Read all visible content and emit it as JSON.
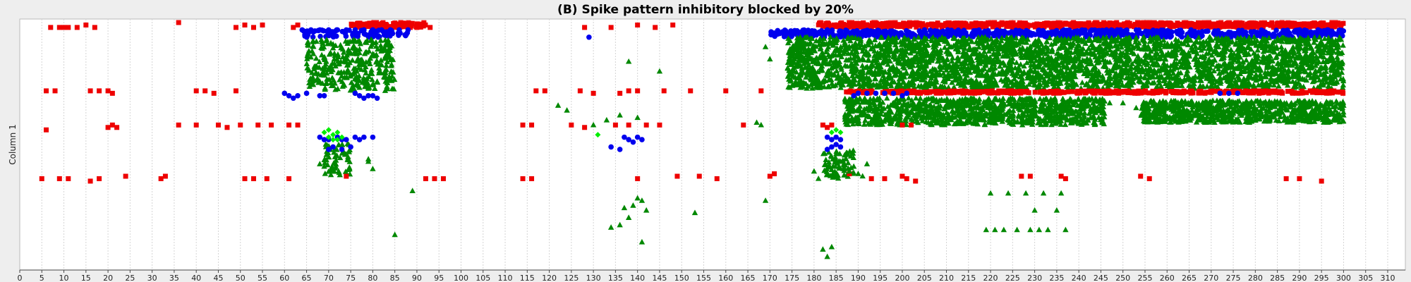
{
  "chart_data": {
    "type": "scatter",
    "title": "(B) Spike pattern inhibitory blocked by 20%",
    "ylabel": "Column 1",
    "xlabel": "",
    "xlim": [
      0,
      314
    ],
    "x_ticks": [
      0,
      5,
      10,
      15,
      20,
      25,
      30,
      35,
      40,
      45,
      50,
      55,
      60,
      65,
      70,
      75,
      80,
      85,
      90,
      95,
      100,
      105,
      110,
      115,
      120,
      125,
      130,
      135,
      140,
      145,
      150,
      155,
      160,
      165,
      170,
      175,
      180,
      185,
      190,
      195,
      200,
      205,
      210,
      215,
      220,
      225,
      230,
      235,
      240,
      245,
      250,
      255,
      260,
      265,
      270,
      275,
      280,
      285,
      290,
      295,
      300,
      305,
      310
    ],
    "grid": "vertical dashed",
    "y_unit": "row index from top (0 = top edge, 100 = bottom edge)",
    "series": [
      {
        "marker": "square",
        "color": "#ee0000",
        "points": [
          [
            7,
            2
          ],
          [
            9,
            2
          ],
          [
            10,
            2
          ],
          [
            11,
            2
          ],
          [
            13,
            2
          ],
          [
            15,
            1
          ],
          [
            17,
            2
          ],
          [
            36,
            0
          ],
          [
            49,
            2
          ],
          [
            51,
            1
          ],
          [
            53,
            2
          ],
          [
            55,
            1
          ],
          [
            62,
            2
          ],
          [
            63,
            1
          ],
          [
            90,
            2
          ],
          [
            93,
            2
          ],
          [
            128,
            2
          ],
          [
            134,
            2
          ],
          [
            140,
            1
          ],
          [
            144,
            2
          ],
          [
            148,
            1
          ],
          [
            6,
            28
          ],
          [
            8,
            28
          ],
          [
            16,
            28
          ],
          [
            18,
            28
          ],
          [
            20,
            28
          ],
          [
            21,
            29
          ],
          [
            40,
            28
          ],
          [
            42,
            28
          ],
          [
            44,
            29
          ],
          [
            49,
            28
          ],
          [
            117,
            28
          ],
          [
            119,
            28
          ],
          [
            127,
            28
          ],
          [
            130,
            29
          ],
          [
            136,
            29
          ],
          [
            138,
            28
          ],
          [
            140,
            28
          ],
          [
            146,
            28
          ],
          [
            152,
            28
          ],
          [
            160,
            28
          ],
          [
            168,
            28
          ],
          [
            36,
            42
          ],
          [
            40,
            42
          ],
          [
            45,
            42
          ],
          [
            47,
            43
          ],
          [
            50,
            42
          ],
          [
            54,
            42
          ],
          [
            57,
            42
          ],
          [
            61,
            42
          ],
          [
            63,
            42
          ],
          [
            6,
            44
          ],
          [
            20,
            43
          ],
          [
            21,
            42
          ],
          [
            22,
            43
          ],
          [
            114,
            42
          ],
          [
            116,
            42
          ],
          [
            125,
            42
          ],
          [
            128,
            43
          ],
          [
            135,
            42
          ],
          [
            138,
            42
          ],
          [
            142,
            42
          ],
          [
            145,
            42
          ],
          [
            164,
            42
          ],
          [
            182,
            42
          ],
          [
            183,
            43
          ],
          [
            184,
            42
          ],
          [
            200,
            42
          ],
          [
            202,
            42
          ],
          [
            5,
            64
          ],
          [
            9,
            64
          ],
          [
            11,
            64
          ],
          [
            16,
            65
          ],
          [
            18,
            64
          ],
          [
            24,
            63
          ],
          [
            32,
            64
          ],
          [
            33,
            63
          ],
          [
            51,
            64
          ],
          [
            53,
            64
          ],
          [
            56,
            64
          ],
          [
            61,
            64
          ],
          [
            74,
            63
          ],
          [
            92,
            64
          ],
          [
            94,
            64
          ],
          [
            96,
            64
          ],
          [
            114,
            64
          ],
          [
            116,
            64
          ],
          [
            140,
            64
          ],
          [
            149,
            63
          ],
          [
            154,
            63
          ],
          [
            158,
            64
          ],
          [
            170,
            63
          ],
          [
            171,
            62
          ],
          [
            188,
            62
          ],
          [
            193,
            64
          ],
          [
            196,
            64
          ],
          [
            200,
            63
          ],
          [
            201,
            64
          ],
          [
            203,
            65
          ],
          [
            227,
            63
          ],
          [
            229,
            63
          ],
          [
            236,
            63
          ],
          [
            237,
            64
          ],
          [
            254,
            63
          ],
          [
            256,
            64
          ],
          [
            287,
            64
          ],
          [
            290,
            64
          ],
          [
            295,
            65
          ]
        ]
      },
      {
        "marker": "circle",
        "color": "#0000ee",
        "points": [
          [
            129,
            6
          ],
          [
            64,
            3
          ],
          [
            66,
            3
          ],
          [
            68,
            3
          ],
          [
            70,
            3
          ],
          [
            72,
            3
          ],
          [
            74,
            3
          ],
          [
            76,
            3
          ],
          [
            78,
            3
          ],
          [
            80,
            3
          ],
          [
            82,
            3
          ],
          [
            84,
            3
          ],
          [
            86,
            3
          ],
          [
            88,
            3
          ],
          [
            60,
            29
          ],
          [
            61,
            30
          ],
          [
            62,
            31
          ],
          [
            63,
            30
          ],
          [
            65,
            29
          ],
          [
            68,
            30
          ],
          [
            69,
            30
          ],
          [
            76,
            29
          ],
          [
            77,
            30
          ],
          [
            78,
            31
          ],
          [
            79,
            30
          ],
          [
            80,
            30
          ],
          [
            81,
            31
          ],
          [
            68,
            47
          ],
          [
            69,
            48
          ],
          [
            70,
            48
          ],
          [
            72,
            47
          ],
          [
            73,
            48
          ],
          [
            74,
            48
          ],
          [
            76,
            47
          ],
          [
            77,
            48
          ],
          [
            78,
            47
          ],
          [
            80,
            47
          ],
          [
            70,
            52
          ],
          [
            71,
            51
          ],
          [
            73,
            52
          ],
          [
            75,
            51
          ],
          [
            134,
            51
          ],
          [
            136,
            52
          ],
          [
            138,
            48
          ],
          [
            139,
            49
          ],
          [
            140,
            47
          ],
          [
            141,
            48
          ],
          [
            137,
            47
          ],
          [
            183,
            47
          ],
          [
            184,
            48
          ],
          [
            185,
            47
          ],
          [
            186,
            48
          ],
          [
            183,
            52
          ],
          [
            184,
            51
          ],
          [
            185,
            50
          ],
          [
            186,
            51
          ],
          [
            189,
            30
          ],
          [
            190,
            29
          ],
          [
            192,
            29
          ],
          [
            194,
            29
          ],
          [
            196,
            29
          ],
          [
            198,
            29
          ],
          [
            200,
            30
          ],
          [
            201,
            29
          ],
          [
            272,
            29
          ],
          [
            274,
            29
          ],
          [
            276,
            29
          ]
        ]
      },
      {
        "marker": "triangle",
        "color": "#008800",
        "points": [
          [
            85,
            87
          ],
          [
            89,
            69
          ],
          [
            138,
            16
          ],
          [
            145,
            20
          ],
          [
            122,
            34
          ],
          [
            124,
            36
          ],
          [
            130,
            42
          ],
          [
            133,
            40
          ],
          [
            136,
            38
          ],
          [
            140,
            39
          ],
          [
            169,
            10
          ],
          [
            170,
            15
          ],
          [
            168,
            42
          ],
          [
            167,
            41
          ],
          [
            139,
            75
          ],
          [
            137,
            76
          ],
          [
            140,
            72
          ],
          [
            141,
            73
          ],
          [
            142,
            77
          ],
          [
            138,
            80
          ],
          [
            136,
            83
          ],
          [
            134,
            84
          ],
          [
            141,
            90
          ],
          [
            153,
            78
          ],
          [
            169,
            73
          ],
          [
            220,
            70
          ],
          [
            224,
            70
          ],
          [
            228,
            70
          ],
          [
            232,
            70
          ],
          [
            236,
            70
          ],
          [
            230,
            77
          ],
          [
            235,
            77
          ],
          [
            219,
            85
          ],
          [
            221,
            85
          ],
          [
            223,
            85
          ],
          [
            226,
            85
          ],
          [
            229,
            85
          ],
          [
            231,
            85
          ],
          [
            233,
            85
          ],
          [
            237,
            85
          ],
          [
            182,
            93
          ],
          [
            183,
            96
          ],
          [
            184,
            92
          ],
          [
            79,
            56
          ],
          [
            79,
            57
          ],
          [
            80,
            60
          ],
          [
            68,
            58
          ],
          [
            69,
            59
          ],
          [
            186,
            57
          ],
          [
            187,
            60
          ],
          [
            188,
            61
          ],
          [
            189,
            59
          ],
          [
            190,
            62
          ],
          [
            191,
            63
          ],
          [
            192,
            58
          ],
          [
            184,
            55
          ],
          [
            180,
            61
          ],
          [
            181,
            64
          ],
          [
            183,
            62
          ],
          [
            185,
            63
          ],
          [
            245,
            35
          ],
          [
            247,
            33
          ],
          [
            250,
            33
          ],
          [
            253,
            35
          ],
          [
            300,
            34
          ],
          [
            300,
            38
          ]
        ]
      },
      {
        "marker": "diamond",
        "color": "#00ee00",
        "points": [
          [
            69,
            45
          ],
          [
            70,
            44
          ],
          [
            71,
            46
          ],
          [
            72,
            45
          ],
          [
            73,
            47
          ],
          [
            70,
            47
          ],
          [
            71,
            48
          ],
          [
            72,
            48
          ],
          [
            131,
            46
          ],
          [
            184,
            45
          ],
          [
            185,
            44
          ],
          [
            186,
            45
          ]
        ]
      }
    ],
    "clusters": [
      {
        "marker": "square",
        "color": "#ee0000",
        "x": [
          75,
          92
        ],
        "y": [
          0,
          2
        ],
        "count": 110
      },
      {
        "marker": "circle",
        "color": "#0000ee",
        "x": [
          64,
          88
        ],
        "y": [
          3,
          6
        ],
        "count": 80
      },
      {
        "marker": "triangle",
        "color": "#008800",
        "x": [
          65,
          85
        ],
        "y": [
          7,
          28
        ],
        "count": 330
      },
      {
        "marker": "triangle",
        "color": "#008800",
        "x": [
          69,
          75
        ],
        "y": [
          49,
          63
        ],
        "count": 60
      },
      {
        "marker": "square",
        "color": "#ee0000",
        "x": [
          181,
          300
        ],
        "y": [
          0,
          2
        ],
        "count": 700
      },
      {
        "marker": "circle",
        "color": "#0000ee",
        "x": [
          170,
          300
        ],
        "y": [
          3,
          6
        ],
        "count": 700
      },
      {
        "marker": "triangle",
        "color": "#008800",
        "x": [
          174,
          300
        ],
        "y": [
          6,
          27
        ],
        "count": 3200
      },
      {
        "marker": "square",
        "color": "#ee0000",
        "x": [
          187,
          300
        ],
        "y": [
          28,
          29
        ],
        "count": 450
      },
      {
        "marker": "triangle",
        "color": "#008800",
        "x": [
          187,
          246
        ],
        "y": [
          31,
          42
        ],
        "count": 1000
      },
      {
        "marker": "triangle",
        "color": "#008800",
        "x": [
          254,
          300
        ],
        "y": [
          32,
          41
        ],
        "count": 800
      },
      {
        "marker": "triangle",
        "color": "#008800",
        "x": [
          182,
          189
        ],
        "y": [
          52,
          64
        ],
        "count": 70
      }
    ]
  }
}
